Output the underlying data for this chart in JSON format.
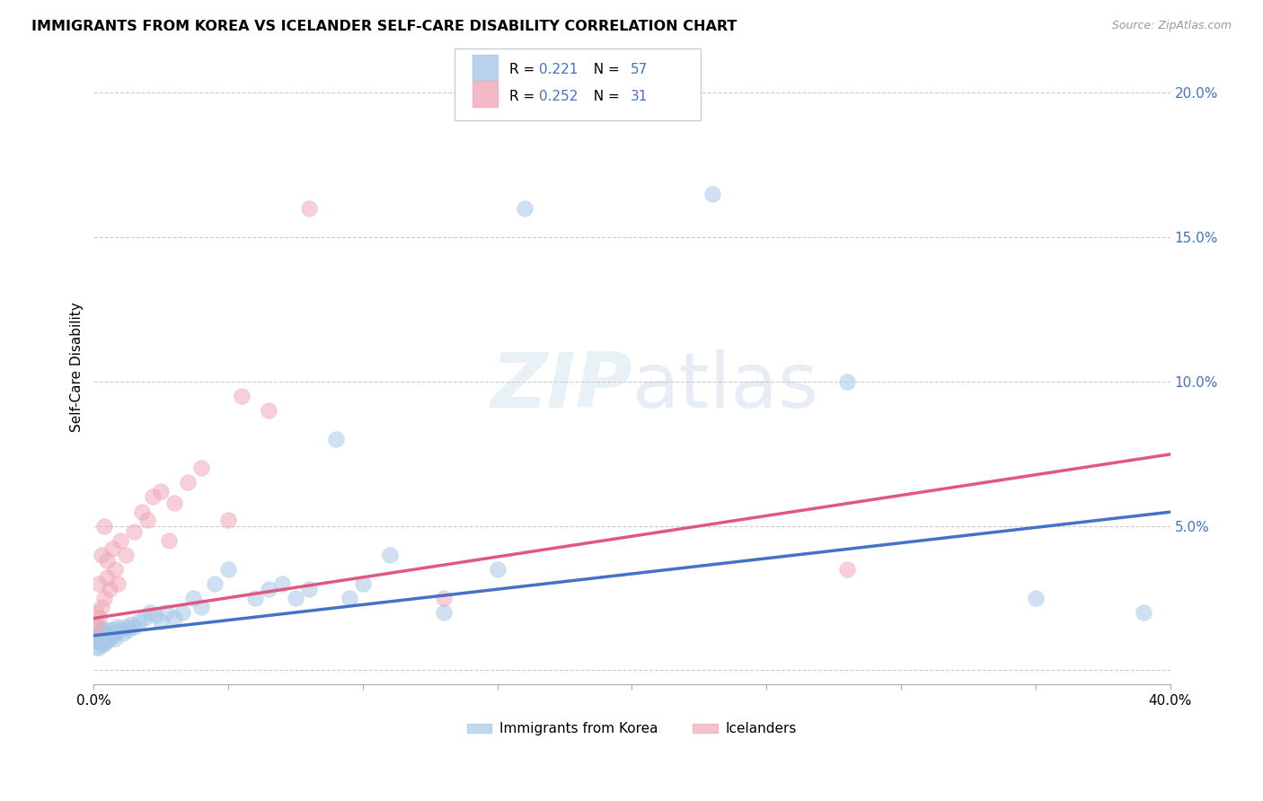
{
  "title": "IMMIGRANTS FROM KOREA VS ICELANDER SELF-CARE DISABILITY CORRELATION CHART",
  "source": "Source: ZipAtlas.com",
  "ylabel": "Self-Care Disability",
  "legend_korea": "Immigrants from Korea",
  "legend_iceland": "Icelanders",
  "R_korea": 0.221,
  "N_korea": 57,
  "R_iceland": 0.252,
  "N_iceland": 31,
  "xlim": [
    0.0,
    0.4
  ],
  "ylim": [
    -0.005,
    0.215
  ],
  "yticks": [
    0.0,
    0.05,
    0.1,
    0.15,
    0.2
  ],
  "ytick_labels": [
    "",
    "5.0%",
    "10.0%",
    "15.0%",
    "20.0%"
  ],
  "color_korea": "#A8C8E8",
  "color_iceland": "#F0A8B8",
  "line_color_korea": "#4472C4",
  "line_color_iceland": "#E05880",
  "background_color": "#FFFFFF",
  "korea_x": [
    0.001,
    0.001,
    0.001,
    0.002,
    0.002,
    0.002,
    0.002,
    0.003,
    0.003,
    0.003,
    0.004,
    0.004,
    0.004,
    0.005,
    0.005,
    0.005,
    0.006,
    0.006,
    0.007,
    0.007,
    0.008,
    0.008,
    0.009,
    0.01,
    0.011,
    0.012,
    0.013,
    0.014,
    0.015,
    0.017,
    0.019,
    0.021,
    0.023,
    0.025,
    0.027,
    0.03,
    0.033,
    0.037,
    0.04,
    0.045,
    0.05,
    0.06,
    0.065,
    0.07,
    0.075,
    0.08,
    0.09,
    0.095,
    0.1,
    0.11,
    0.13,
    0.15,
    0.16,
    0.23,
    0.28,
    0.35,
    0.39
  ],
  "korea_y": [
    0.01,
    0.008,
    0.012,
    0.015,
    0.01,
    0.008,
    0.013,
    0.012,
    0.009,
    0.014,
    0.011,
    0.013,
    0.009,
    0.014,
    0.01,
    0.012,
    0.013,
    0.011,
    0.012,
    0.014,
    0.013,
    0.011,
    0.015,
    0.014,
    0.013,
    0.015,
    0.014,
    0.016,
    0.015,
    0.017,
    0.018,
    0.02,
    0.019,
    0.017,
    0.02,
    0.018,
    0.02,
    0.025,
    0.022,
    0.03,
    0.035,
    0.025,
    0.028,
    0.03,
    0.025,
    0.028,
    0.08,
    0.025,
    0.03,
    0.04,
    0.02,
    0.035,
    0.16,
    0.165,
    0.1,
    0.025,
    0.02
  ],
  "iceland_x": [
    0.001,
    0.001,
    0.002,
    0.002,
    0.003,
    0.003,
    0.004,
    0.004,
    0.005,
    0.005,
    0.006,
    0.007,
    0.008,
    0.009,
    0.01,
    0.012,
    0.015,
    0.018,
    0.02,
    0.022,
    0.025,
    0.028,
    0.03,
    0.035,
    0.04,
    0.05,
    0.055,
    0.065,
    0.08,
    0.13,
    0.28
  ],
  "iceland_y": [
    0.02,
    0.015,
    0.03,
    0.018,
    0.04,
    0.022,
    0.05,
    0.025,
    0.038,
    0.032,
    0.028,
    0.042,
    0.035,
    0.03,
    0.045,
    0.04,
    0.048,
    0.055,
    0.052,
    0.06,
    0.062,
    0.045,
    0.058,
    0.065,
    0.07,
    0.052,
    0.095,
    0.09,
    0.16,
    0.025,
    0.035
  ],
  "watermark_text": "ZIPatlas"
}
